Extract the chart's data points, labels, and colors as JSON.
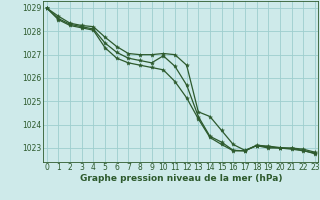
{
  "title": "Graphe pression niveau de la mer (hPa)",
  "background_color": "#ceeaea",
  "grid_color": "#9ecece",
  "line_color": "#2d5a2d",
  "xlim": [
    -0.3,
    23.3
  ],
  "ylim": [
    1022.4,
    1029.3
  ],
  "yticks": [
    1023,
    1024,
    1025,
    1026,
    1027,
    1028,
    1029
  ],
  "xticks": [
    0,
    1,
    2,
    3,
    4,
    5,
    6,
    7,
    8,
    9,
    10,
    11,
    12,
    13,
    14,
    15,
    16,
    17,
    18,
    19,
    20,
    21,
    22,
    23
  ],
  "lines": [
    [
      1029.0,
      1028.65,
      1028.35,
      1028.25,
      1028.2,
      1027.75,
      1027.35,
      1027.05,
      1027.0,
      1027.0,
      1027.05,
      1027.0,
      1026.55,
      1024.55,
      1024.35,
      1023.75,
      1023.15,
      1022.9,
      1023.1,
      1023.0,
      1023.0,
      1023.0,
      1022.95,
      1022.82
    ],
    [
      1029.0,
      1028.55,
      1028.3,
      1028.2,
      1028.1,
      1027.5,
      1027.1,
      1026.85,
      1026.75,
      1026.65,
      1026.95,
      1026.5,
      1025.7,
      1024.35,
      1023.5,
      1023.25,
      1022.9,
      1022.88,
      1023.1,
      1023.05,
      1023.0,
      1022.95,
      1022.88,
      1022.78
    ],
    [
      1029.0,
      1028.5,
      1028.25,
      1028.15,
      1028.05,
      1027.3,
      1026.85,
      1026.65,
      1026.55,
      1026.45,
      1026.35,
      1025.85,
      1025.15,
      1024.25,
      1023.45,
      1023.15,
      1022.88,
      1022.88,
      1023.12,
      1023.08,
      1023.02,
      1022.98,
      1022.9,
      1022.75
    ]
  ],
  "tick_fontsize": 5.5,
  "title_fontsize": 6.5,
  "linewidth": 0.9,
  "markersize": 3.0
}
